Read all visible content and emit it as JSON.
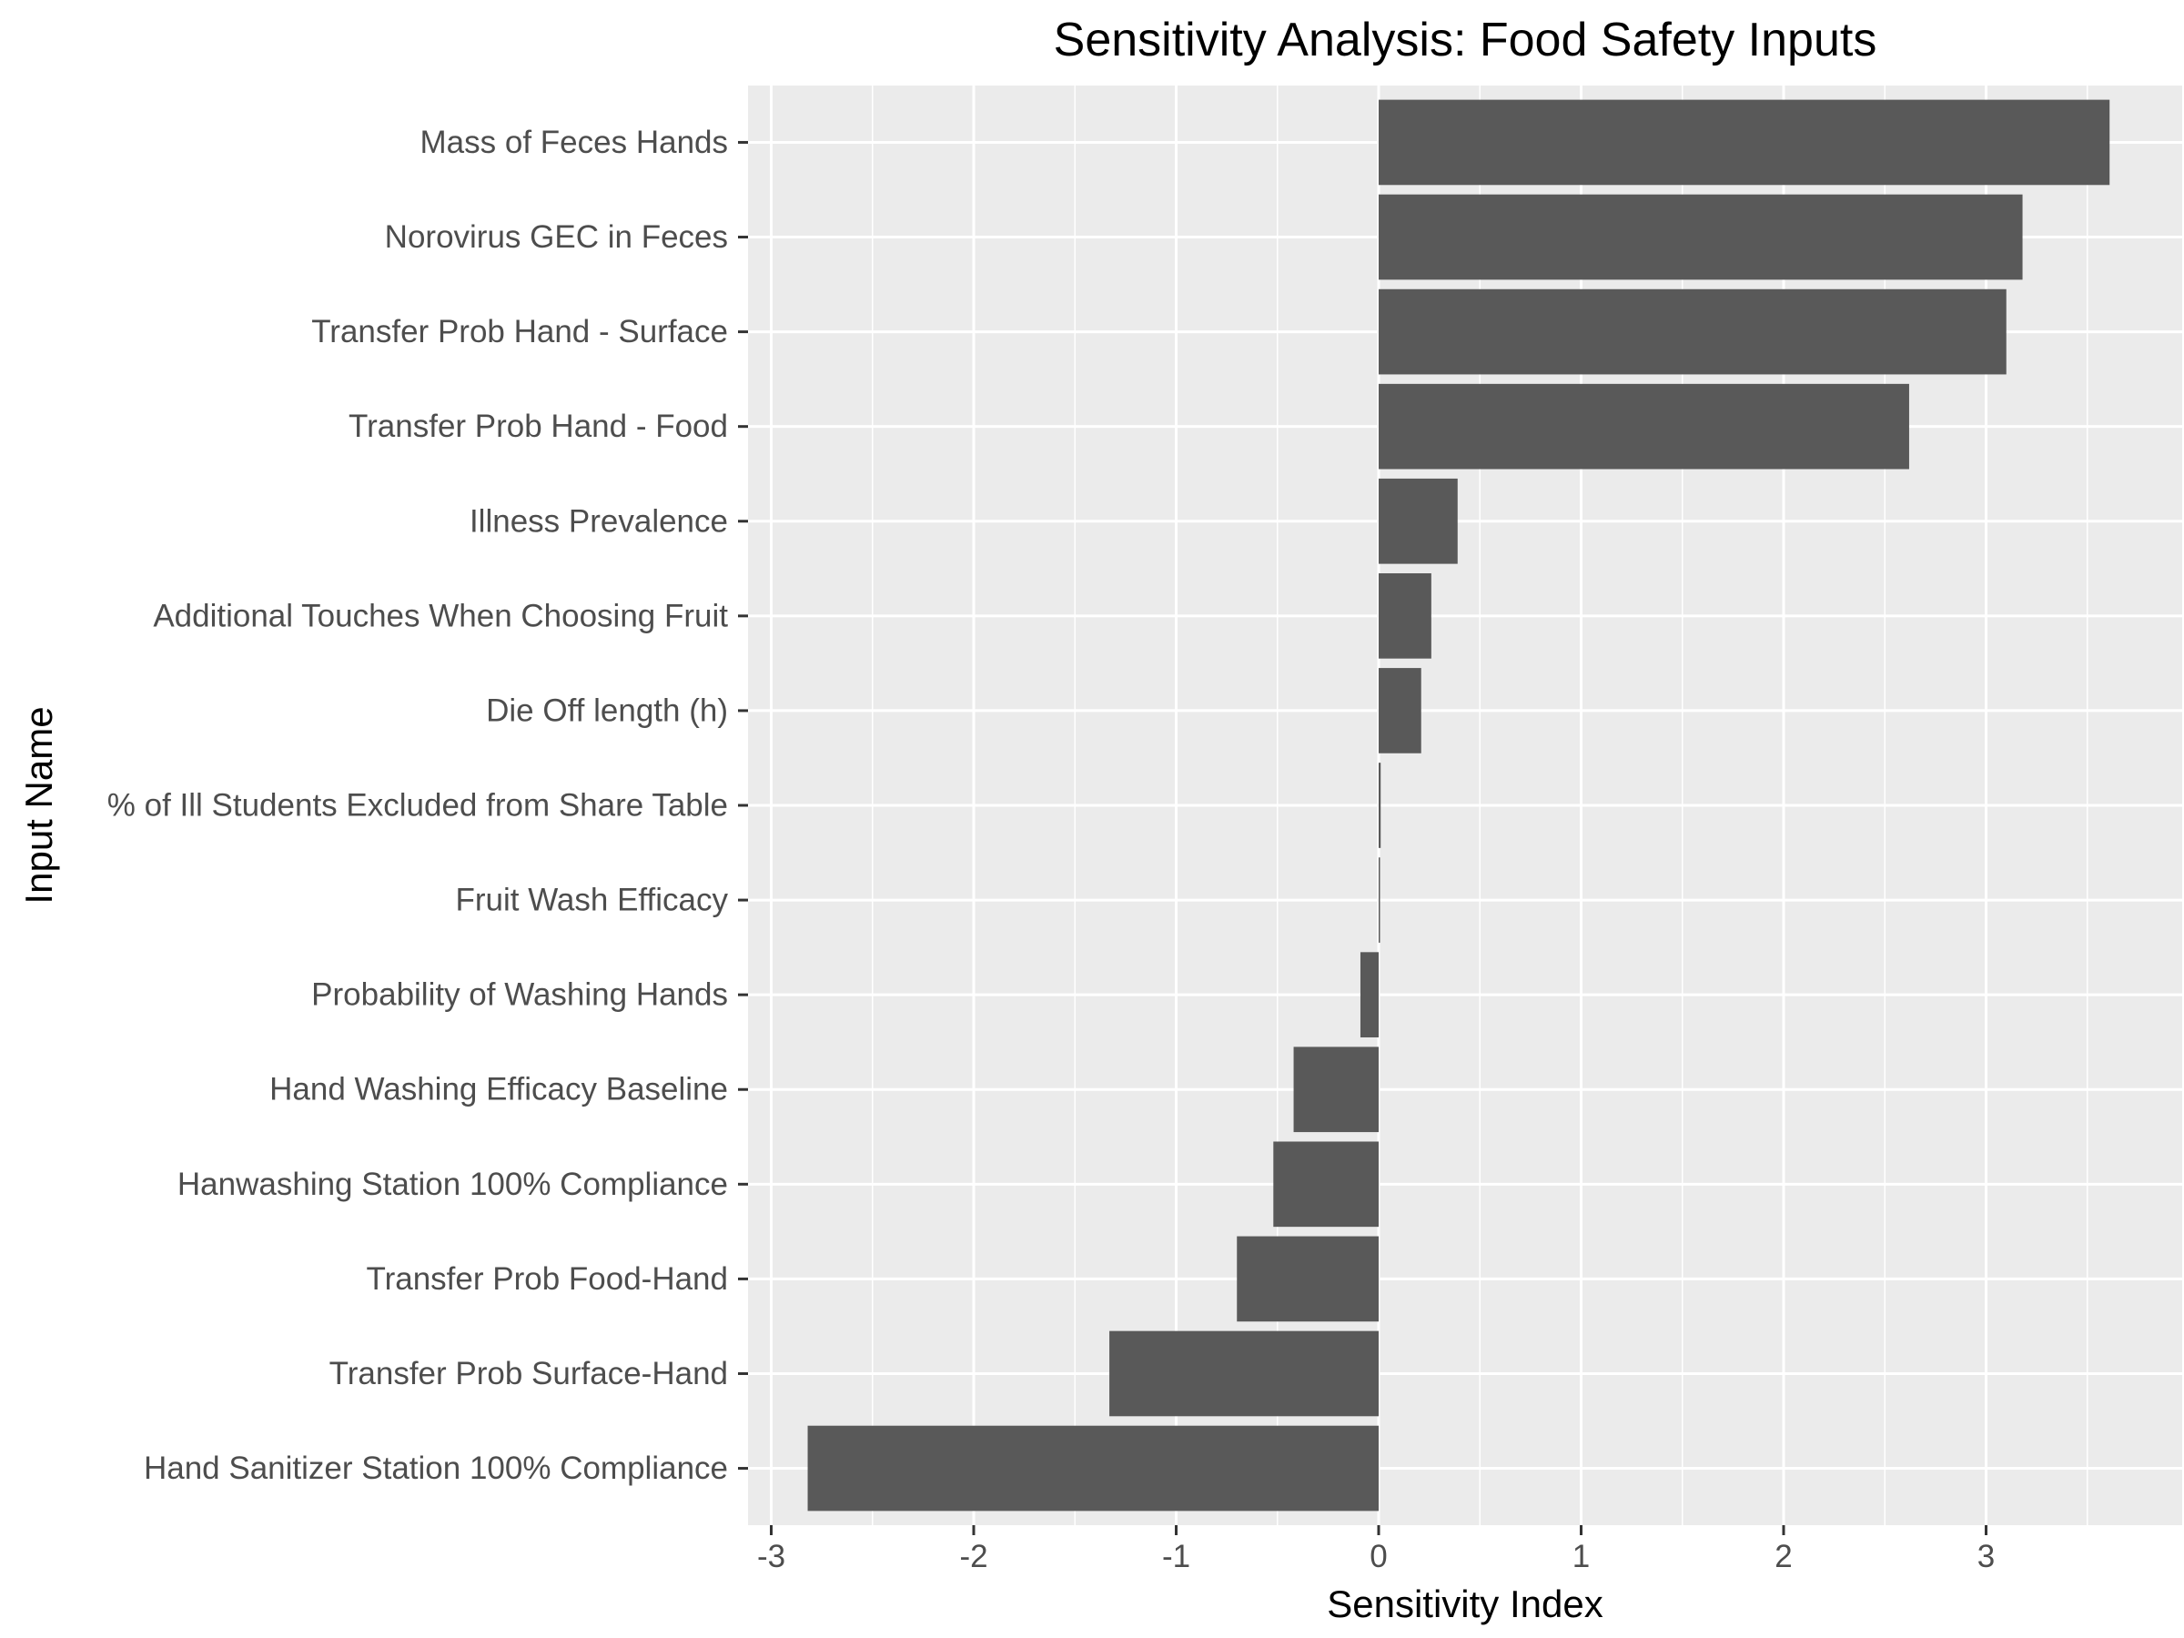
{
  "chart_data": {
    "type": "bar",
    "orientation": "horizontal",
    "title": "Sensitivity Analysis: Food Safety Inputs",
    "xlabel": "Sensitivity Index",
    "ylabel": "Input Name",
    "xlim": [
      -3.03,
      3.8
    ],
    "x_ticks": [
      "-3",
      "-2",
      "-1",
      "0",
      "1",
      "2",
      "3"
    ],
    "x_tick_values": [
      -3,
      -2,
      -1,
      0,
      1,
      2,
      3
    ],
    "grid": true,
    "legend": "none",
    "colors": {
      "bar": "#595959",
      "panel": "#ebebeb",
      "grid": "#ffffff",
      "text": "#4d4d4d",
      "title": "#000000"
    },
    "categories": [
      "Mass of Feces Hands",
      "Norovirus GEC in Feces",
      "Transfer Prob Hand - Surface",
      "Transfer Prob Hand - Food",
      "Illness Prevalence",
      "Additional Touches When Choosing Fruit",
      "Die Off length (h)",
      "% of Ill Students Excluded from Share Table",
      "Fruit Wash Efficacy",
      "Probability of Washing Hands",
      "Hand Washing Efficacy Baseline",
      "Hanwashing Station 100% Compliance",
      "Transfer Prob Food-Hand",
      "Transfer Prob Surface-Hand",
      "Hand Sanitizer Station 100% Compliance"
    ],
    "values": [
      3.61,
      3.18,
      3.1,
      2.62,
      0.39,
      0.26,
      0.21,
      0.01,
      0.002,
      -0.09,
      -0.42,
      -0.52,
      -0.7,
      -1.33,
      -2.82
    ]
  }
}
